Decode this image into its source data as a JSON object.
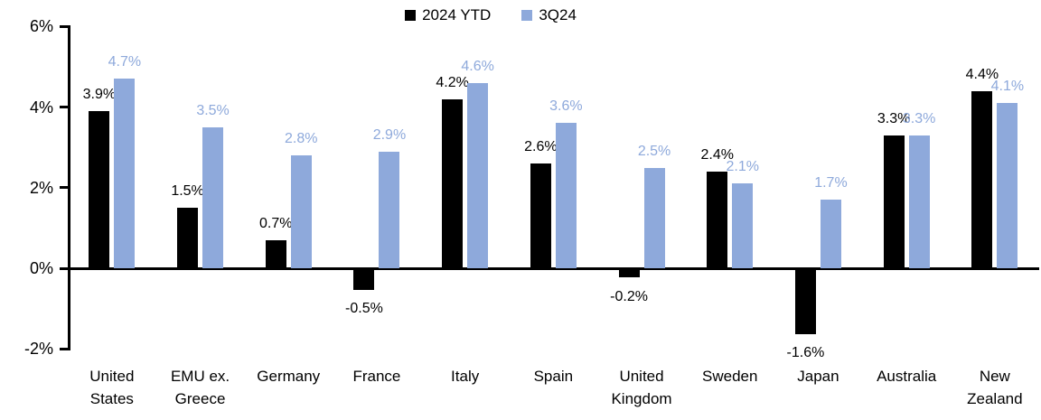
{
  "chart_data": {
    "type": "bar",
    "title": "",
    "categories": [
      "United States",
      "EMU ex. Greece",
      "Germany",
      "France",
      "Italy",
      "Spain",
      "United Kingdom",
      "Sweden",
      "Japan",
      "Australia",
      "New Zealand"
    ],
    "categories_multiline": [
      "United\nStates",
      "EMU ex.\nGreece",
      "Germany",
      "France",
      "Italy",
      "Spain",
      "United\nKingdom",
      "Sweden",
      "Japan",
      "Australia",
      "New\nZealand"
    ],
    "series": [
      {
        "name": "2024 YTD",
        "color": "#000000",
        "values": [
          3.9,
          1.5,
          0.7,
          -0.5,
          4.2,
          2.6,
          -0.2,
          2.4,
          -1.6,
          3.3,
          4.4
        ],
        "labels": [
          "3.9%",
          "1.5%",
          "0.7%",
          "-0.5%",
          "4.2%",
          "2.6%",
          "-0.2%",
          "2.4%",
          "-1.6%",
          "3.3%",
          "4.4%"
        ]
      },
      {
        "name": "3Q24",
        "color": "#8EA9DB",
        "values": [
          4.7,
          3.5,
          2.8,
          2.9,
          4.6,
          3.6,
          2.5,
          2.1,
          1.7,
          3.3,
          4.1
        ],
        "labels": [
          "4.7%",
          "3.5%",
          "2.8%",
          "2.9%",
          "4.6%",
          "3.6%",
          "2.5%",
          "2.1%",
          "1.7%",
          "3.3%",
          "4.1%"
        ]
      }
    ],
    "xlabel": "",
    "ylabel": "",
    "ylim": [
      -2,
      6
    ],
    "yticks": [
      {
        "value": 6,
        "label": "6%"
      },
      {
        "value": 4,
        "label": "4%"
      },
      {
        "value": 2,
        "label": "2%"
      },
      {
        "value": 0,
        "label": "0%"
      },
      {
        "value": -2,
        "label": "-2%"
      }
    ],
    "grid": false,
    "legend_position": "top-center",
    "axis_color": "#000000",
    "background": "#FFFFFF"
  }
}
